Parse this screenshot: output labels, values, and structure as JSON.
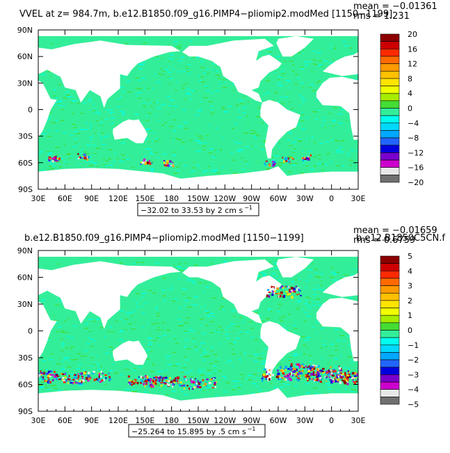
{
  "chart_data": [
    {
      "type": "heatmap",
      "title": "VVEL at z= 984.7m, b.e12.B1850.f09_g16.PIMP4−pliomip2.modMed [1150−1199]",
      "stats": {
        "mean": "mean = −0.01361",
        "rms": "rms = 1.231"
      },
      "range_box": "−32.02 to 33.53 by 2 cm s",
      "range_unit_exp": "−1",
      "x_ticks": [
        "30E",
        "60E",
        "90E",
        "120E",
        "150E",
        "180",
        "150W",
        "120W",
        "90W",
        "60W",
        "30W",
        "0",
        "30E"
      ],
      "y_ticks": [
        "90N",
        "60N",
        "30N",
        "0",
        "30S",
        "60S",
        "90S"
      ],
      "colorbar_labels": [
        "20",
        "16",
        "12",
        "8",
        "4",
        "0",
        "−4",
        "−8",
        "−12",
        "−16",
        "−20"
      ],
      "colorbar_colors": [
        "#8b0000",
        "#cc0000",
        "#ff2a00",
        "#ff6a00",
        "#ff9a00",
        "#ffc000",
        "#ffe400",
        "#f0ff00",
        "#a6ec00",
        "#44dd33",
        "#33ee99",
        "#00ffee",
        "#00d9ff",
        "#00a8ff",
        "#2266ff",
        "#0000dd",
        "#7a00cc",
        "#cc00cc",
        "#e8e8e8",
        "#707070"
      ],
      "ylim": [
        -90,
        90
      ],
      "xlim": [
        30,
        390
      ]
    },
    {
      "type": "heatmap",
      "title": "b.e12.B1850.f09_g16.PIMP4−pliomip2.modMed [1150−1199]",
      "title_overlap": "b.e12.B1850C5CN.f",
      "stats": {
        "mean": "mean = −0.01659",
        "rms": "rms = 0.6759"
      },
      "range_box": "−25.264 to 15.895 by .5 cm s",
      "range_unit_exp": "−1",
      "x_ticks": [
        "30E",
        "60E",
        "90E",
        "120E",
        "150E",
        "180",
        "150W",
        "120W",
        "90W",
        "60W",
        "30W",
        "0",
        "30E"
      ],
      "y_ticks": [
        "90N",
        "60N",
        "30N",
        "0",
        "30S",
        "60S",
        "90S"
      ],
      "colorbar_labels": [
        "5",
        "4",
        "3",
        "2",
        "1",
        "0",
        "−1",
        "−2",
        "−3",
        "−4",
        "−5"
      ],
      "colorbar_colors": [
        "#8b0000",
        "#cc0000",
        "#ff2a00",
        "#ff6a00",
        "#ff9a00",
        "#ffc000",
        "#ffe400",
        "#f0ff00",
        "#a6ec00",
        "#44dd33",
        "#33ee99",
        "#00ffee",
        "#00d9ff",
        "#00a8ff",
        "#2266ff",
        "#0000dd",
        "#7a00cc",
        "#cc00cc",
        "#e8e8e8",
        "#707070"
      ],
      "ylim": [
        -90,
        90
      ],
      "xlim": [
        30,
        390
      ]
    }
  ]
}
